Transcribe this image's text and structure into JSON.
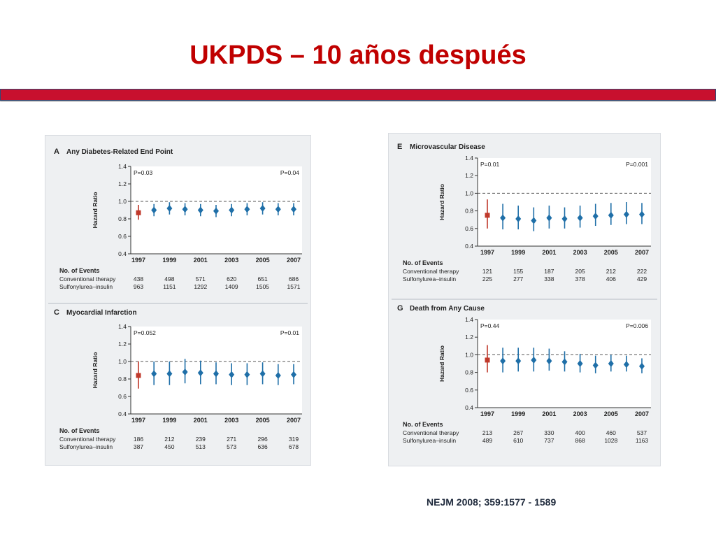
{
  "slide": {
    "title": "UKPDS – 10 años después",
    "citation": "NEJM 2008; 359:1577 - 1589"
  },
  "colors": {
    "title": "#c00000",
    "bar": "#c8102e",
    "baseline": "#c0392b",
    "series": "#1f6fa8"
  },
  "chart_data": [
    {
      "type": "scatter",
      "letter": "A",
      "title": "Any Diabetes-Related End Point",
      "ylabel": "Hazard Ratio",
      "ylim": [
        0.4,
        1.4
      ],
      "yticks": [
        "0.4",
        "0.6",
        "0.8",
        "1.0",
        "1.2",
        "1.4"
      ],
      "xticks": [
        "1997",
        "1999",
        "2001",
        "2003",
        "2005",
        "2007"
      ],
      "reference_line": 1.0,
      "p_left": "P=0.03",
      "p_right": "P=0.04",
      "points": [
        {
          "hr": 0.87,
          "lo": 0.79,
          "hi": 0.96
        },
        {
          "hr": 0.9,
          "lo": 0.83,
          "hi": 0.97
        },
        {
          "hr": 0.92,
          "lo": 0.85,
          "hi": 0.99
        },
        {
          "hr": 0.91,
          "lo": 0.84,
          "hi": 0.98
        },
        {
          "hr": 0.9,
          "lo": 0.83,
          "hi": 0.97
        },
        {
          "hr": 0.89,
          "lo": 0.82,
          "hi": 0.96
        },
        {
          "hr": 0.9,
          "lo": 0.83,
          "hi": 0.97
        },
        {
          "hr": 0.91,
          "lo": 0.84,
          "hi": 0.98
        },
        {
          "hr": 0.92,
          "lo": 0.85,
          "hi": 0.99
        },
        {
          "hr": 0.91,
          "lo": 0.84,
          "hi": 0.98
        },
        {
          "hr": 0.91,
          "lo": 0.84,
          "hi": 0.98
        }
      ],
      "events_title": "No. of Events",
      "event_rows": [
        {
          "label": "Conventional therapy",
          "values": [
            "438",
            "498",
            "571",
            "620",
            "651",
            "686"
          ]
        },
        {
          "label": "Sulfonylurea–insulin",
          "values": [
            "963",
            "1151",
            "1292",
            "1409",
            "1505",
            "1571"
          ]
        }
      ]
    },
    {
      "type": "scatter",
      "letter": "C",
      "title": "Myocardial Infarction",
      "ylabel": "Hazard Ratio",
      "ylim": [
        0.4,
        1.4
      ],
      "yticks": [
        "0.4",
        "0.6",
        "0.8",
        "1.0",
        "1.2",
        "1.4"
      ],
      "xticks": [
        "1997",
        "1999",
        "2001",
        "2003",
        "2005",
        "2007"
      ],
      "reference_line": 1.0,
      "p_left": "P=0.052",
      "p_right": "P=0.01",
      "points": [
        {
          "hr": 0.84,
          "lo": 0.69,
          "hi": 1.0
        },
        {
          "hr": 0.86,
          "lo": 0.73,
          "hi": 1.0
        },
        {
          "hr": 0.86,
          "lo": 0.73,
          "hi": 1.0
        },
        {
          "hr": 0.88,
          "lo": 0.75,
          "hi": 1.03
        },
        {
          "hr": 0.87,
          "lo": 0.74,
          "hi": 1.01
        },
        {
          "hr": 0.86,
          "lo": 0.74,
          "hi": 0.99
        },
        {
          "hr": 0.85,
          "lo": 0.73,
          "hi": 0.98
        },
        {
          "hr": 0.85,
          "lo": 0.73,
          "hi": 0.98
        },
        {
          "hr": 0.86,
          "lo": 0.74,
          "hi": 0.99
        },
        {
          "hr": 0.84,
          "lo": 0.73,
          "hi": 0.97
        },
        {
          "hr": 0.85,
          "lo": 0.74,
          "hi": 0.97
        }
      ],
      "events_title": "No. of Events",
      "event_rows": [
        {
          "label": "Conventional therapy",
          "values": [
            "186",
            "212",
            "239",
            "271",
            "296",
            "319"
          ]
        },
        {
          "label": "Sulfonylurea–insulin",
          "values": [
            "387",
            "450",
            "513",
            "573",
            "636",
            "678"
          ]
        }
      ]
    },
    {
      "type": "scatter",
      "letter": "E",
      "title": "Microvascular Disease",
      "ylabel": "Hazard Ratio",
      "ylim": [
        0.4,
        1.4
      ],
      "yticks": [
        "0.4",
        "0.6",
        "0.8",
        "1.0",
        "1.2",
        "1.4"
      ],
      "xticks": [
        "1997",
        "1999",
        "2001",
        "2003",
        "2005",
        "2007"
      ],
      "reference_line": 1.0,
      "p_left": "P=0.01",
      "p_right": "P=0.001",
      "points": [
        {
          "hr": 0.75,
          "lo": 0.6,
          "hi": 0.93
        },
        {
          "hr": 0.72,
          "lo": 0.59,
          "hi": 0.88
        },
        {
          "hr": 0.71,
          "lo": 0.59,
          "hi": 0.86
        },
        {
          "hr": 0.69,
          "lo": 0.57,
          "hi": 0.84
        },
        {
          "hr": 0.72,
          "lo": 0.6,
          "hi": 0.86
        },
        {
          "hr": 0.71,
          "lo": 0.6,
          "hi": 0.84
        },
        {
          "hr": 0.72,
          "lo": 0.61,
          "hi": 0.86
        },
        {
          "hr": 0.74,
          "lo": 0.63,
          "hi": 0.88
        },
        {
          "hr": 0.75,
          "lo": 0.64,
          "hi": 0.89
        },
        {
          "hr": 0.76,
          "lo": 0.65,
          "hi": 0.9
        },
        {
          "hr": 0.76,
          "lo": 0.65,
          "hi": 0.89
        }
      ],
      "events_title": "No. of Events",
      "event_rows": [
        {
          "label": "Conventional therapy",
          "values": [
            "121",
            "155",
            "187",
            "205",
            "212",
            "222"
          ]
        },
        {
          "label": "Sulfonylurea–insulin",
          "values": [
            "225",
            "277",
            "338",
            "378",
            "406",
            "429"
          ]
        }
      ]
    },
    {
      "type": "scatter",
      "letter": "G",
      "title": "Death from Any Cause",
      "ylabel": "Hazard Ratio",
      "ylim": [
        0.4,
        1.4
      ],
      "yticks": [
        "0.4",
        "0.6",
        "0.8",
        "1.0",
        "1.2",
        "1.4"
      ],
      "xticks": [
        "1997",
        "1999",
        "2001",
        "2003",
        "2005",
        "2007"
      ],
      "reference_line": 1.0,
      "p_left": "P=0.44",
      "p_right": "P=0.006",
      "points": [
        {
          "hr": 0.94,
          "lo": 0.8,
          "hi": 1.11
        },
        {
          "hr": 0.93,
          "lo": 0.8,
          "hi": 1.08
        },
        {
          "hr": 0.93,
          "lo": 0.81,
          "hi": 1.08
        },
        {
          "hr": 0.94,
          "lo": 0.81,
          "hi": 1.08
        },
        {
          "hr": 0.93,
          "lo": 0.82,
          "hi": 1.07
        },
        {
          "hr": 0.92,
          "lo": 0.81,
          "hi": 1.04
        },
        {
          "hr": 0.9,
          "lo": 0.8,
          "hi": 1.01
        },
        {
          "hr": 0.88,
          "lo": 0.79,
          "hi": 0.99
        },
        {
          "hr": 0.9,
          "lo": 0.81,
          "hi": 1.0
        },
        {
          "hr": 0.89,
          "lo": 0.81,
          "hi": 0.99
        },
        {
          "hr": 0.87,
          "lo": 0.79,
          "hi": 0.96
        }
      ],
      "events_title": "No. of Events",
      "event_rows": [
        {
          "label": "Conventional therapy",
          "values": [
            "213",
            "267",
            "330",
            "400",
            "460",
            "537"
          ]
        },
        {
          "label": "Sulfonylurea–insulin",
          "values": [
            "489",
            "610",
            "737",
            "868",
            "1028",
            "1163"
          ]
        }
      ]
    }
  ]
}
